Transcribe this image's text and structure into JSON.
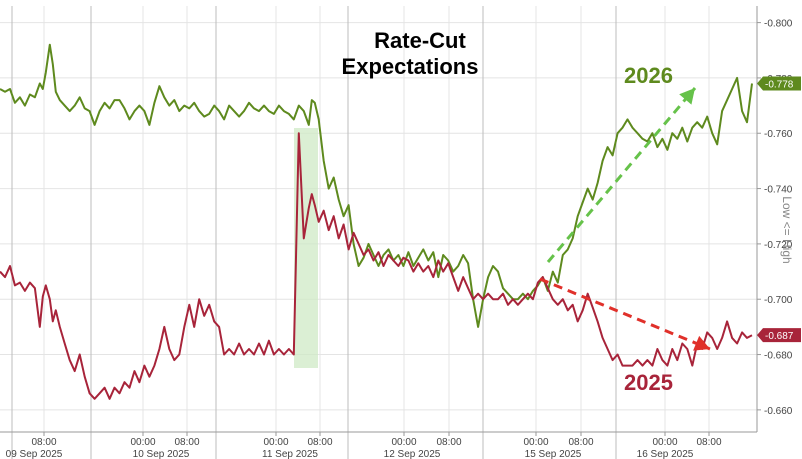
{
  "chart_data": {
    "type": "line",
    "title": "Rate-Cut\nExpectations",
    "ylabel": "Low <= High",
    "ylim": [
      0.652,
      0.806
    ],
    "y_ticks": [
      "-0.800",
      "-0.780",
      "-0.760",
      "-0.740",
      "-0.720",
      "-0.700",
      "-0.680",
      "-0.660"
    ],
    "grid": true,
    "time_labels": [
      "08:00",
      "00:00",
      "08:00",
      "00:00",
      "08:00",
      "00:00",
      "08:00",
      "00:00",
      "08:00",
      "00:00",
      "08:00"
    ],
    "day_labels": [
      "09 Sep 2025",
      "10 Sep 2025",
      "11 Sep 2025",
      "12 Sep 2025",
      "15 Sep 2025",
      "16 Sep 2025"
    ],
    "series": [
      {
        "name": "2026",
        "color": "#5e8a1e",
        "last_label": "-0.778",
        "points": [
          [
            0,
            0.776
          ],
          [
            0.5,
            0.775
          ],
          [
            1,
            0.776
          ],
          [
            1.5,
            0.771
          ],
          [
            2,
            0.773
          ],
          [
            2.5,
            0.77
          ],
          [
            3,
            0.774
          ],
          [
            3.5,
            0.773
          ],
          [
            4,
            0.778
          ],
          [
            4.3,
            0.776
          ],
          [
            4.6,
            0.782
          ],
          [
            5,
            0.792
          ],
          [
            5.3,
            0.785
          ],
          [
            5.6,
            0.775
          ],
          [
            6,
            0.772
          ],
          [
            6.5,
            0.77
          ],
          [
            7,
            0.768
          ],
          [
            7.5,
            0.77
          ],
          [
            8,
            0.773
          ],
          [
            8.5,
            0.769
          ],
          [
            9,
            0.768
          ],
          [
            9.5,
            0.763
          ],
          [
            10,
            0.768
          ],
          [
            10.5,
            0.771
          ],
          [
            11,
            0.769
          ],
          [
            11.5,
            0.772
          ],
          [
            12,
            0.772
          ],
          [
            12.5,
            0.769
          ],
          [
            13,
            0.765
          ],
          [
            13.5,
            0.768
          ],
          [
            14,
            0.77
          ],
          [
            14.5,
            0.768
          ],
          [
            15,
            0.763
          ],
          [
            15.5,
            0.771
          ],
          [
            16,
            0.777
          ],
          [
            16.5,
            0.773
          ],
          [
            17,
            0.77
          ],
          [
            17.5,
            0.772
          ],
          [
            18,
            0.768
          ],
          [
            18.5,
            0.77
          ],
          [
            19,
            0.769
          ],
          [
            19.5,
            0.771
          ],
          [
            20,
            0.768
          ],
          [
            20.5,
            0.766
          ],
          [
            21,
            0.767
          ],
          [
            21.5,
            0.77
          ],
          [
            22,
            0.768
          ],
          [
            22.5,
            0.765
          ],
          [
            23,
            0.77
          ],
          [
            23.5,
            0.768
          ],
          [
            24,
            0.766
          ],
          [
            24.5,
            0.768
          ],
          [
            25,
            0.771
          ],
          [
            25.5,
            0.769
          ],
          [
            26,
            0.768
          ],
          [
            26.5,
            0.77
          ],
          [
            27,
            0.768
          ],
          [
            27.5,
            0.767
          ],
          [
            28,
            0.77
          ],
          [
            28.5,
            0.768
          ],
          [
            29,
            0.767
          ],
          [
            29.5,
            0.765
          ],
          [
            30,
            0.77
          ],
          [
            30.5,
            0.768
          ],
          [
            31,
            0.763
          ],
          [
            31.3,
            0.772
          ],
          [
            31.6,
            0.771
          ],
          [
            32,
            0.765
          ],
          [
            32.5,
            0.75
          ],
          [
            33,
            0.74
          ],
          [
            33.5,
            0.744
          ],
          [
            34,
            0.736
          ],
          [
            34.5,
            0.73
          ],
          [
            35,
            0.734
          ],
          [
            35.5,
            0.72
          ],
          [
            36,
            0.712
          ],
          [
            36.5,
            0.715
          ],
          [
            37,
            0.72
          ],
          [
            37.5,
            0.716
          ],
          [
            38,
            0.712
          ],
          [
            38.5,
            0.716
          ],
          [
            39,
            0.718
          ],
          [
            39.5,
            0.714
          ],
          [
            40,
            0.716
          ],
          [
            40.5,
            0.712
          ],
          [
            41,
            0.717
          ],
          [
            41.5,
            0.712
          ],
          [
            42,
            0.715
          ],
          [
            42.5,
            0.718
          ],
          [
            43,
            0.714
          ],
          [
            43.5,
            0.717
          ],
          [
            44,
            0.708
          ],
          [
            44.5,
            0.716
          ],
          [
            45,
            0.714
          ],
          [
            45.5,
            0.71
          ],
          [
            46,
            0.712
          ],
          [
            46.5,
            0.716
          ],
          [
            47,
            0.713
          ],
          [
            47.5,
            0.7
          ],
          [
            48,
            0.69
          ],
          [
            48.5,
            0.7
          ],
          [
            49,
            0.708
          ],
          [
            49.5,
            0.712
          ],
          [
            50,
            0.71
          ],
          [
            50.5,
            0.704
          ],
          [
            51,
            0.702
          ],
          [
            51.5,
            0.7
          ],
          [
            52,
            0.7
          ],
          [
            52.5,
            0.702
          ],
          [
            53,
            0.7
          ],
          [
            53.5,
            0.703
          ],
          [
            54,
            0.705
          ],
          [
            54.5,
            0.708
          ],
          [
            55,
            0.703
          ],
          [
            55.5,
            0.71
          ],
          [
            56,
            0.706
          ],
          [
            56.5,
            0.716
          ],
          [
            57,
            0.718
          ],
          [
            57.5,
            0.722
          ],
          [
            58,
            0.73
          ],
          [
            58.5,
            0.735
          ],
          [
            59,
            0.74
          ],
          [
            59.5,
            0.736
          ],
          [
            60,
            0.742
          ],
          [
            60.5,
            0.75
          ],
          [
            61,
            0.755
          ],
          [
            61.5,
            0.752
          ],
          [
            62,
            0.76
          ],
          [
            62.5,
            0.762
          ],
          [
            63,
            0.765
          ],
          [
            63.5,
            0.762
          ],
          [
            64,
            0.76
          ],
          [
            64.5,
            0.758
          ],
          [
            65,
            0.757
          ],
          [
            65.5,
            0.76
          ],
          [
            66,
            0.755
          ],
          [
            66.5,
            0.758
          ],
          [
            67,
            0.754
          ],
          [
            67.5,
            0.76
          ],
          [
            68,
            0.758
          ],
          [
            68.5,
            0.762
          ],
          [
            69,
            0.757
          ],
          [
            69.5,
            0.762
          ],
          [
            70,
            0.764
          ],
          [
            70.5,
            0.762
          ],
          [
            71,
            0.766
          ],
          [
            71.5,
            0.76
          ],
          [
            72,
            0.756
          ],
          [
            72.5,
            0.768
          ],
          [
            73,
            0.772
          ],
          [
            73.5,
            0.776
          ],
          [
            74,
            0.78
          ],
          [
            74.5,
            0.768
          ],
          [
            75,
            0.764
          ],
          [
            75.5,
            0.778
          ]
        ]
      },
      {
        "name": "2025",
        "color": "#a8243a",
        "last_label": "-0.687",
        "points": [
          [
            0,
            0.71
          ],
          [
            0.5,
            0.708
          ],
          [
            1,
            0.712
          ],
          [
            1.5,
            0.705
          ],
          [
            2,
            0.706
          ],
          [
            2.5,
            0.703
          ],
          [
            3,
            0.706
          ],
          [
            3.5,
            0.704
          ],
          [
            4,
            0.69
          ],
          [
            4.3,
            0.701
          ],
          [
            4.6,
            0.705
          ],
          [
            5,
            0.7
          ],
          [
            5.3,
            0.692
          ],
          [
            5.6,
            0.696
          ],
          [
            6,
            0.69
          ],
          [
            6.5,
            0.684
          ],
          [
            7,
            0.678
          ],
          [
            7.5,
            0.674
          ],
          [
            8,
            0.68
          ],
          [
            8.5,
            0.672
          ],
          [
            9,
            0.666
          ],
          [
            9.5,
            0.664
          ],
          [
            10,
            0.666
          ],
          [
            10.5,
            0.668
          ],
          [
            11,
            0.664
          ],
          [
            11.5,
            0.668
          ],
          [
            12,
            0.666
          ],
          [
            12.5,
            0.67
          ],
          [
            13,
            0.668
          ],
          [
            13.5,
            0.674
          ],
          [
            14,
            0.67
          ],
          [
            14.5,
            0.676
          ],
          [
            15,
            0.672
          ],
          [
            15.5,
            0.676
          ],
          [
            16,
            0.682
          ],
          [
            16.5,
            0.69
          ],
          [
            17,
            0.682
          ],
          [
            17.5,
            0.678
          ],
          [
            18,
            0.68
          ],
          [
            18.5,
            0.69
          ],
          [
            19,
            0.698
          ],
          [
            19.5,
            0.69
          ],
          [
            20,
            0.7
          ],
          [
            20.5,
            0.694
          ],
          [
            21,
            0.698
          ],
          [
            21.5,
            0.692
          ],
          [
            22,
            0.69
          ],
          [
            22.5,
            0.68
          ],
          [
            23,
            0.682
          ],
          [
            23.5,
            0.68
          ],
          [
            24,
            0.684
          ],
          [
            24.5,
            0.68
          ],
          [
            25,
            0.682
          ],
          [
            25.5,
            0.68
          ],
          [
            26,
            0.684
          ],
          [
            26.5,
            0.68
          ],
          [
            27,
            0.685
          ],
          [
            27.5,
            0.68
          ],
          [
            28,
            0.682
          ],
          [
            28.5,
            0.68
          ],
          [
            29,
            0.682
          ],
          [
            29.5,
            0.68
          ],
          [
            30,
            0.76
          ],
          [
            30.5,
            0.722
          ],
          [
            31,
            0.733
          ],
          [
            31.3,
            0.738
          ],
          [
            31.6,
            0.734
          ],
          [
            32,
            0.728
          ],
          [
            32.5,
            0.732
          ],
          [
            33,
            0.725
          ],
          [
            33.5,
            0.73
          ],
          [
            34,
            0.722
          ],
          [
            34.5,
            0.727
          ],
          [
            35,
            0.718
          ],
          [
            35.5,
            0.724
          ],
          [
            36,
            0.72
          ],
          [
            36.5,
            0.716
          ],
          [
            37,
            0.718
          ],
          [
            37.5,
            0.714
          ],
          [
            38,
            0.717
          ],
          [
            38.5,
            0.712
          ],
          [
            39,
            0.716
          ],
          [
            39.5,
            0.714
          ],
          [
            40,
            0.712
          ],
          [
            40.5,
            0.715
          ],
          [
            41,
            0.714
          ],
          [
            41.5,
            0.71
          ],
          [
            42,
            0.713
          ],
          [
            42.5,
            0.71
          ],
          [
            43,
            0.712
          ],
          [
            43.5,
            0.708
          ],
          [
            44,
            0.714
          ],
          [
            44.5,
            0.71
          ],
          [
            45,
            0.713
          ],
          [
            45.5,
            0.708
          ],
          [
            46,
            0.703
          ],
          [
            46.5,
            0.708
          ],
          [
            47,
            0.704
          ],
          [
            47.5,
            0.7
          ],
          [
            48,
            0.702
          ],
          [
            48.5,
            0.7
          ],
          [
            49,
            0.702
          ],
          [
            49.5,
            0.7
          ],
          [
            50,
            0.7
          ],
          [
            50.5,
            0.702
          ],
          [
            51,
            0.698
          ],
          [
            51.5,
            0.7
          ],
          [
            52,
            0.698
          ],
          [
            52.5,
            0.7
          ],
          [
            53,
            0.702
          ],
          [
            53.5,
            0.7
          ],
          [
            54,
            0.706
          ],
          [
            54.5,
            0.708
          ],
          [
            55,
            0.704
          ],
          [
            55.5,
            0.7
          ],
          [
            56,
            0.698
          ],
          [
            56.5,
            0.7
          ],
          [
            57,
            0.696
          ],
          [
            57.5,
            0.698
          ],
          [
            58,
            0.692
          ],
          [
            58.5,
            0.696
          ],
          [
            59,
            0.702
          ],
          [
            59.5,
            0.697
          ],
          [
            60,
            0.692
          ],
          [
            60.5,
            0.686
          ],
          [
            61,
            0.682
          ],
          [
            61.5,
            0.678
          ],
          [
            62,
            0.68
          ],
          [
            62.5,
            0.676
          ],
          [
            63,
            0.676
          ],
          [
            63.5,
            0.676
          ],
          [
            64,
            0.678
          ],
          [
            64.5,
            0.676
          ],
          [
            65,
            0.678
          ],
          [
            65.5,
            0.676
          ],
          [
            66,
            0.682
          ],
          [
            66.5,
            0.678
          ],
          [
            67,
            0.676
          ],
          [
            67.5,
            0.682
          ],
          [
            68,
            0.678
          ],
          [
            68.5,
            0.684
          ],
          [
            69,
            0.682
          ],
          [
            69.5,
            0.676
          ],
          [
            70,
            0.684
          ],
          [
            70.5,
            0.682
          ],
          [
            71,
            0.688
          ],
          [
            71.5,
            0.686
          ],
          [
            72,
            0.682
          ],
          [
            72.5,
            0.686
          ],
          [
            73,
            0.692
          ],
          [
            73.5,
            0.686
          ],
          [
            74,
            0.684
          ],
          [
            74.5,
            0.688
          ],
          [
            75,
            0.686
          ],
          [
            75.5,
            0.687
          ]
        ]
      }
    ],
    "annotations": [
      {
        "text": "2026",
        "color": "#5e8a1e"
      },
      {
        "text": "2025",
        "color": "#a8243a"
      }
    ],
    "highlight_color": "#cfe9c6"
  }
}
